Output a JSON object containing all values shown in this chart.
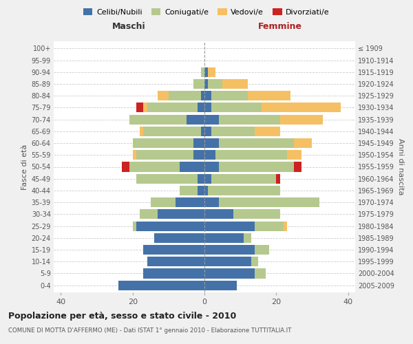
{
  "age_groups": [
    "0-4",
    "5-9",
    "10-14",
    "15-19",
    "20-24",
    "25-29",
    "30-34",
    "35-39",
    "40-44",
    "45-49",
    "50-54",
    "55-59",
    "60-64",
    "65-69",
    "70-74",
    "75-79",
    "80-84",
    "85-89",
    "90-94",
    "95-99",
    "100+"
  ],
  "birth_years": [
    "2005-2009",
    "2000-2004",
    "1995-1999",
    "1990-1994",
    "1985-1989",
    "1980-1984",
    "1975-1979",
    "1970-1974",
    "1965-1969",
    "1960-1964",
    "1955-1959",
    "1950-1954",
    "1945-1949",
    "1940-1944",
    "1935-1939",
    "1930-1934",
    "1925-1929",
    "1920-1924",
    "1915-1919",
    "1910-1914",
    "≤ 1909"
  ],
  "maschi": {
    "celibe": [
      24,
      17,
      16,
      17,
      14,
      19,
      13,
      8,
      2,
      2,
      7,
      3,
      3,
      1,
      5,
      2,
      1,
      0,
      0,
      0,
      0
    ],
    "coniugato": [
      0,
      0,
      0,
      0,
      0,
      1,
      5,
      7,
      5,
      17,
      14,
      16,
      17,
      16,
      16,
      14,
      9,
      3,
      1,
      0,
      0
    ],
    "vedovo": [
      0,
      0,
      0,
      0,
      0,
      0,
      0,
      0,
      0,
      0,
      0,
      1,
      0,
      1,
      0,
      1,
      3,
      0,
      0,
      0,
      0
    ],
    "divorziato": [
      0,
      0,
      0,
      0,
      0,
      0,
      0,
      0,
      0,
      0,
      2,
      0,
      0,
      0,
      0,
      2,
      0,
      0,
      0,
      0,
      0
    ]
  },
  "femmine": {
    "nubile": [
      9,
      14,
      13,
      14,
      11,
      14,
      8,
      4,
      1,
      2,
      4,
      3,
      4,
      2,
      4,
      2,
      2,
      1,
      1,
      0,
      0
    ],
    "coniugata": [
      0,
      3,
      2,
      4,
      2,
      8,
      13,
      28,
      20,
      18,
      21,
      20,
      21,
      12,
      17,
      14,
      10,
      4,
      0,
      0,
      0
    ],
    "vedova": [
      0,
      0,
      0,
      0,
      0,
      1,
      0,
      0,
      0,
      0,
      0,
      4,
      5,
      7,
      12,
      22,
      12,
      7,
      2,
      0,
      0
    ],
    "divorziata": [
      0,
      0,
      0,
      0,
      0,
      0,
      0,
      0,
      0,
      1,
      2,
      0,
      0,
      0,
      0,
      0,
      0,
      0,
      0,
      0,
      0
    ]
  },
  "colors": {
    "celibe_nubile": "#4472a8",
    "coniugato_coniugata": "#b5c98e",
    "vedovo_vedova": "#f5c064",
    "divorziato_divorziata": "#cc2222"
  },
  "title": "Popolazione per età, sesso e stato civile - 2010",
  "subtitle": "COMUNE DI MOTTA D'AFFERMO (ME) - Dati ISTAT 1° gennaio 2010 - Elaborazione TUTTITALIA.IT",
  "xlabel_left": "Maschi",
  "xlabel_right": "Femmine",
  "ylabel_left": "Fasce di età",
  "ylabel_right": "Anni di nascita",
  "xlim": 42,
  "bg_color": "#f0f0f0",
  "plot_bg": "#ffffff",
  "legend_labels": [
    "Celibi/Nubili",
    "Coniugati/e",
    "Vedovi/e",
    "Divorziati/e"
  ],
  "xtick_labels": [
    "40",
    "20",
    "0",
    "20",
    "40"
  ]
}
